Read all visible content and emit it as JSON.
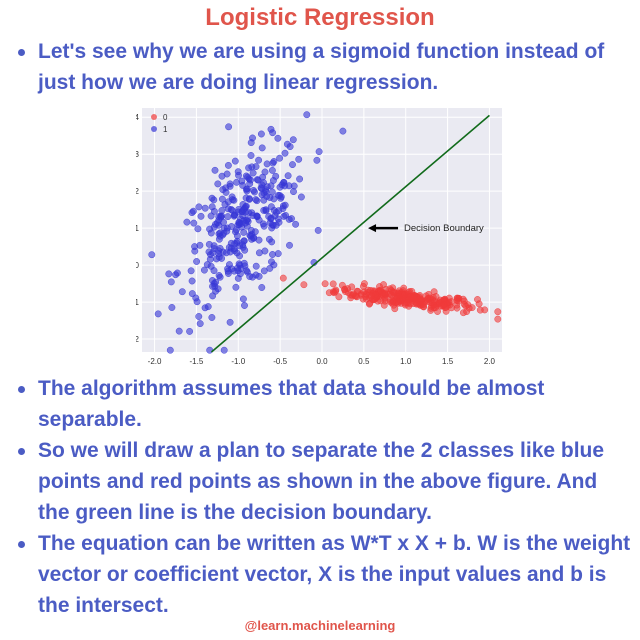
{
  "title": "Logistic Regression",
  "top_bullets": [
    "Let's see why we are using a sigmoid function instead of just how we are doing linear regression."
  ],
  "bottom_bullets": [
    "The algorithm assumes that data should be almost separable.",
    "So we will draw a plan to separate the 2 classes like blue points and red points as shown in the above figure. And the green line is the decision boundary.",
    "The equation can be written as W*T x X + b. W is the weight vector or coefficient vector, X is the input values and b is the intersect."
  ],
  "footer": "@learn.machinelearning",
  "colors": {
    "title": "#e0554b",
    "text": "#4b5cc4",
    "class0": "#f03a3a",
    "class1": "#3636d6",
    "boundary": "#116b1b",
    "plot_bg": "#eaeaf2"
  },
  "chart_data": {
    "type": "scatter",
    "xlim": [
      -2.15,
      2.15
    ],
    "ylim": [
      -2.35,
      4.25
    ],
    "xticks": [
      "-2.0",
      "-1.5",
      "-1.0",
      "-0.5",
      "0.0",
      "0.5",
      "1.0",
      "1.5",
      "2.0"
    ],
    "yticks": [
      "4",
      "3",
      "2",
      "1",
      "0",
      "-1",
      "-2"
    ],
    "legend": {
      "position": "top-left",
      "entries": [
        "0",
        "1"
      ]
    },
    "series": [
      {
        "name": "0",
        "color": "#f03a3a",
        "center": [
          1.0,
          -0.9
        ],
        "spread": [
          0.42,
          0.12
        ],
        "slope": -0.28,
        "count": 260
      },
      {
        "name": "1",
        "color": "#3636d6",
        "center": [
          -0.95,
          1.05
        ],
        "spread": [
          0.38,
          0.9
        ],
        "slope": 1.55,
        "count": 330
      }
    ],
    "decision_boundary": {
      "from": [
        -1.32,
        -2.35
      ],
      "to": [
        2.0,
        4.05
      ]
    },
    "annotation": {
      "text": "Decision Boundary",
      "arrow_to": [
        0.55,
        1.0
      ]
    }
  }
}
